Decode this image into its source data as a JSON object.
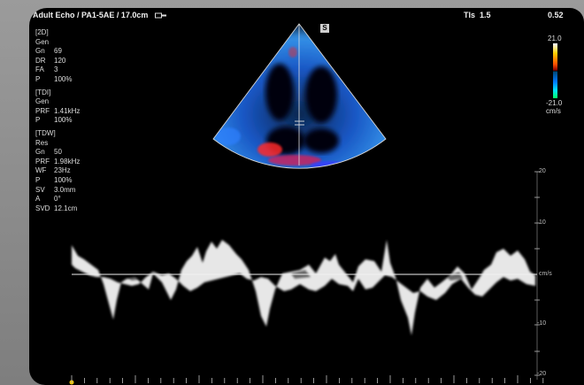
{
  "header": {
    "title": "Adult Echo / PA1-5AE / 17.0cm",
    "tis_label": "TIs",
    "tis_value": "1.5",
    "mi_value": "0.52"
  },
  "sector": {
    "marker": "S"
  },
  "params": {
    "twod": {
      "head": "[2D]",
      "mode": "Gen",
      "rows": [
        {
          "k": "Gn",
          "v": "69"
        },
        {
          "k": "DR",
          "v": "120"
        },
        {
          "k": "FA",
          "v": "3"
        },
        {
          "k": "P",
          "v": "100%"
        }
      ]
    },
    "tdi": {
      "head": "[TDI]",
      "mode": "Gen",
      "rows": [
        {
          "k": "PRF",
          "v": "1.41kHz"
        },
        {
          "k": "P",
          "v": "100%"
        }
      ]
    },
    "tdw": {
      "head": "[TDW]",
      "mode": "Res",
      "rows": [
        {
          "k": "Gn",
          "v": "50"
        },
        {
          "k": "PRF",
          "v": "1.98kHz"
        },
        {
          "k": "WF",
          "v": "23Hz"
        },
        {
          "k": "P",
          "v": "100%"
        },
        {
          "k": "SV",
          "v": "3.0mm"
        },
        {
          "k": "A",
          "v": "0°"
        },
        {
          "k": "SVD",
          "v": "12.1cm"
        }
      ]
    }
  },
  "colorbar": {
    "top": "21.0",
    "bottom": "-21.0",
    "unit": "cm/s"
  },
  "velocity_scale": {
    "labels": [
      "20",
      "10",
      "cm/s",
      "-10",
      "-20"
    ],
    "baseline_unit": "cm/s"
  },
  "colors": {
    "screen": "#000000",
    "tissue_blue": "#1e6bff",
    "tissue_red": "#ff3030",
    "trace": "#ffffff"
  }
}
